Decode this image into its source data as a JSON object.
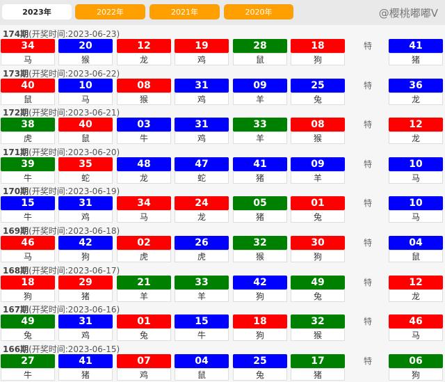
{
  "tabs": [
    {
      "label": "2023年",
      "active": true
    },
    {
      "label": "2022年"
    },
    {
      "label": "2021年"
    },
    {
      "label": "2020年"
    }
  ],
  "special_label": "特",
  "colors": {
    "red": "#ff0000",
    "blue": "#0000ff",
    "green": "#008000"
  },
  "draws": [
    {
      "period": "174期",
      "time": "(开奖时间:2023-06-23)",
      "balls": [
        [
          "34",
          "马",
          "red"
        ],
        [
          "20",
          "猴",
          "blue"
        ],
        [
          "12",
          "龙",
          "red"
        ],
        [
          "19",
          "鸡",
          "red"
        ],
        [
          "28",
          "鼠",
          "green"
        ],
        [
          "18",
          "狗",
          "red"
        ]
      ],
      "special": [
        "41",
        "猪",
        "blue"
      ]
    },
    {
      "period": "173期",
      "time": "(开奖时间:2023-06-22)",
      "balls": [
        [
          "40",
          "鼠",
          "red"
        ],
        [
          "10",
          "马",
          "blue"
        ],
        [
          "08",
          "猴",
          "red"
        ],
        [
          "31",
          "鸡",
          "blue"
        ],
        [
          "09",
          "羊",
          "blue"
        ],
        [
          "25",
          "兔",
          "blue"
        ]
      ],
      "special": [
        "36",
        "龙",
        "blue"
      ]
    },
    {
      "period": "172期",
      "time": "(开奖时间:2023-06-21)",
      "balls": [
        [
          "38",
          "虎",
          "green"
        ],
        [
          "40",
          "鼠",
          "red"
        ],
        [
          "03",
          "牛",
          "blue"
        ],
        [
          "31",
          "鸡",
          "blue"
        ],
        [
          "33",
          "羊",
          "green"
        ],
        [
          "08",
          "猴",
          "red"
        ]
      ],
      "special": [
        "12",
        "龙",
        "red"
      ]
    },
    {
      "period": "171期",
      "time": "(开奖时间:2023-06-20)",
      "balls": [
        [
          "39",
          "牛",
          "green"
        ],
        [
          "35",
          "蛇",
          "red"
        ],
        [
          "48",
          "龙",
          "blue"
        ],
        [
          "47",
          "蛇",
          "blue"
        ],
        [
          "41",
          "猪",
          "blue"
        ],
        [
          "09",
          "羊",
          "blue"
        ]
      ],
      "special": [
        "10",
        "马",
        "blue"
      ]
    },
    {
      "period": "170期",
      "time": "(开奖时间:2023-06-19)",
      "balls": [
        [
          "15",
          "牛",
          "blue"
        ],
        [
          "31",
          "鸡",
          "blue"
        ],
        [
          "34",
          "马",
          "red"
        ],
        [
          "24",
          "龙",
          "red"
        ],
        [
          "05",
          "猪",
          "green"
        ],
        [
          "01",
          "兔",
          "red"
        ]
      ],
      "special": [
        "10",
        "马",
        "blue"
      ]
    },
    {
      "period": "169期",
      "time": "(开奖时间:2023-06-18)",
      "balls": [
        [
          "46",
          "马",
          "red"
        ],
        [
          "42",
          "狗",
          "blue"
        ],
        [
          "02",
          "虎",
          "red"
        ],
        [
          "26",
          "虎",
          "blue"
        ],
        [
          "32",
          "猴",
          "green"
        ],
        [
          "30",
          "狗",
          "red"
        ]
      ],
      "special": [
        "04",
        "鼠",
        "blue"
      ]
    },
    {
      "period": "168期",
      "time": "(开奖时间:2023-06-17)",
      "balls": [
        [
          "18",
          "狗",
          "red"
        ],
        [
          "29",
          "猪",
          "red"
        ],
        [
          "21",
          "羊",
          "green"
        ],
        [
          "33",
          "羊",
          "green"
        ],
        [
          "42",
          "狗",
          "blue"
        ],
        [
          "49",
          "兔",
          "green"
        ]
      ],
      "special": [
        "12",
        "龙",
        "red"
      ]
    },
    {
      "period": "167期",
      "time": "(开奖时间:2023-06-16)",
      "balls": [
        [
          "49",
          "兔",
          "green"
        ],
        [
          "31",
          "鸡",
          "blue"
        ],
        [
          "01",
          "兔",
          "red"
        ],
        [
          "15",
          "牛",
          "blue"
        ],
        [
          "18",
          "狗",
          "red"
        ],
        [
          "32",
          "猴",
          "green"
        ]
      ],
      "special": [
        "46",
        "马",
        "red"
      ]
    },
    {
      "period": "166期",
      "time": "(开奖时间:2023-06-15)",
      "balls": [
        [
          "27",
          "牛",
          "green"
        ],
        [
          "41",
          "猪",
          "blue"
        ],
        [
          "07",
          "鸡",
          "red"
        ],
        [
          "04",
          "鼠",
          "blue"
        ],
        [
          "25",
          "兔",
          "blue"
        ],
        [
          "17",
          "猪",
          "green"
        ]
      ],
      "special": [
        "06",
        "狗",
        "green"
      ]
    }
  ],
  "watermark": "@樱桃嘟嘟V"
}
